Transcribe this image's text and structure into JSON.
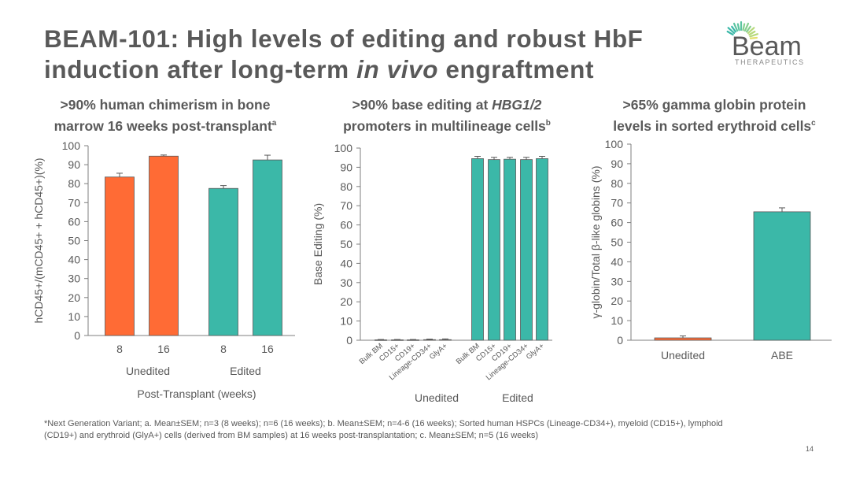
{
  "title": {
    "line1": "BEAM-101: High levels of editing and robust HbF",
    "line2_pre": "induction after long-term ",
    "line2_italic": "in vivo",
    "line2_post": " engraftment"
  },
  "logo": {
    "name": "Beam",
    "tagline": "THERAPEUTICS",
    "icon": "sunburst-icon"
  },
  "panels": [
    {
      "title_line1": ">90% human chimerism in bone",
      "title_line2": "marrow 16 weeks post-transplant",
      "title_sup": "a"
    },
    {
      "title_line1_pre": ">90% base editing at ",
      "title_line1_italic": "HBG1/2",
      "title_line2": "promoters in multilineage cells",
      "title_sup": "b"
    },
    {
      "title_line1": ">65% gamma globin protein",
      "title_line2": "levels in sorted erythroid cells",
      "title_sup": "c"
    }
  ],
  "colors": {
    "unedited": "#FF6B35",
    "edited": "#3BB8A8",
    "text": "#595959"
  },
  "chart_data": [
    {
      "type": "bar",
      "ylabel": "hCD45+/(mCD45+ + hCD45+)(%)",
      "xlabel": "Post-Transplant (weeks)",
      "ylim": [
        0,
        100
      ],
      "yticks": [
        "0",
        "10",
        "20",
        "30",
        "40",
        "50",
        "60",
        "70",
        "80",
        "90",
        "100"
      ],
      "categories": [
        "8",
        "16",
        "8",
        "16"
      ],
      "groups": [
        "Unedited",
        "Edited"
      ],
      "values": [
        83.5,
        94.5,
        77.5,
        92.5
      ],
      "errors": [
        2.0,
        0.6,
        1.5,
        2.5
      ],
      "colors": [
        "unedited",
        "unedited",
        "edited",
        "edited"
      ]
    },
    {
      "type": "bar",
      "ylabel": "Base Editing (%)",
      "ylim": [
        0,
        100
      ],
      "yticks": [
        "0",
        "10",
        "20",
        "30",
        "40",
        "50",
        "60",
        "70",
        "80",
        "90",
        "100"
      ],
      "categories": [
        "Bulk BM",
        "CD15+",
        "CD19+",
        "Lineage-CD34+",
        "GlyA+",
        "Bulk BM",
        "CD15+",
        "CD19+",
        "Lineage-CD34+",
        "GlyA+"
      ],
      "groups": [
        "Unedited",
        "Edited"
      ],
      "values": [
        0.2,
        0.2,
        0.2,
        0.3,
        0.3,
        94.5,
        94,
        94.2,
        94,
        94.5
      ],
      "errors": [
        0.2,
        0.2,
        0.2,
        0.3,
        0.4,
        1.2,
        1.2,
        1.0,
        1.2,
        1.2
      ],
      "colors": [
        "unedited",
        "unedited",
        "unedited",
        "unedited",
        "unedited",
        "edited",
        "edited",
        "edited",
        "edited",
        "edited"
      ]
    },
    {
      "type": "bar",
      "ylabel": "γ-globin/Total β-like globins (%)",
      "ylim": [
        0,
        100
      ],
      "yticks": [
        "0",
        "10",
        "20",
        "30",
        "40",
        "50",
        "60",
        "70",
        "80",
        "90",
        "100"
      ],
      "categories": [
        "Unedited",
        "ABE"
      ],
      "values": [
        1.2,
        65.5
      ],
      "errors": [
        1.0,
        2.0
      ],
      "colors": [
        "unedited",
        "edited"
      ]
    }
  ],
  "footnote_line1": "*Next Generation Variant; a. Mean±SEM; n=3 (8 weeks); n=6 (16 weeks);  b. Mean±SEM; n=4-6 (16 weeks); Sorted human HSPCs (Lineage-CD34+), myeloid (CD15+), lymphoid",
  "footnote_line2": "(CD19+) and erythroid (GlyA+) cells (derived from BM samples) at 16 weeks post-transplantation;  c. Mean±SEM; n=5 (16 weeks)",
  "page_number": "14"
}
